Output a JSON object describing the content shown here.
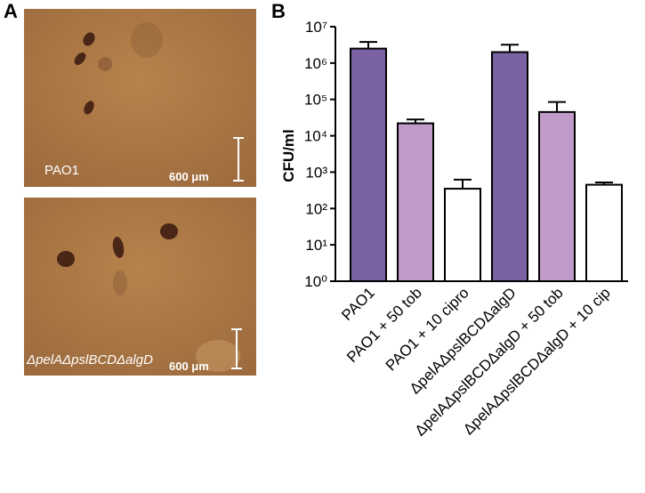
{
  "panel_a": {
    "label": "A",
    "images": [
      {
        "caption": "PAO1",
        "scale": "600 μm"
      },
      {
        "caption": "ΔpelAΔpslBCDΔalgD",
        "scale": "600 μm"
      }
    ]
  },
  "chart_data": {
    "type": "bar",
    "panel_label": "B",
    "y_label": "CFU/ml",
    "categories": [
      "PAO1",
      "PAO1 + 50 tob",
      "PAO1 + 10 cipro",
      "ΔpelAΔpslBCDΔalgD",
      "ΔpelAΔpslBCDΔalgD + 50 tob",
      "ΔpelAΔpslBCDΔalgD + 10 cip"
    ],
    "values": [
      2500000,
      22000,
      350,
      2000000,
      45000,
      450
    ],
    "errors": [
      1300000,
      6000,
      270,
      1200000,
      40000,
      70
    ],
    "colors": [
      "#7b62a3",
      "#c09ac8",
      "#ffffff",
      "#7b62a3",
      "#c09ac8",
      "#ffffff"
    ],
    "log_scale": true,
    "ylim": [
      1,
      10000000
    ],
    "yticks": [
      {
        "value": 1,
        "label": "10⁰"
      },
      {
        "value": 10,
        "label": "10¹"
      },
      {
        "value": 100,
        "label": "10²"
      },
      {
        "value": 1000,
        "label": "10³"
      },
      {
        "value": 10000,
        "label": "10⁴"
      },
      {
        "value": 100000,
        "label": "10⁵"
      },
      {
        "value": 1000000,
        "label": "10⁶"
      },
      {
        "value": 10000000,
        "label": "10⁷"
      }
    ]
  }
}
